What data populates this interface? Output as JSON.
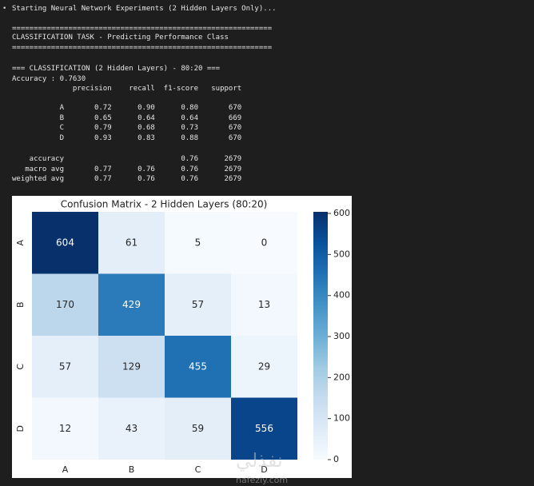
{
  "console": {
    "lines": [
      "Starting Neural Network Experiments (2 Hidden Layers Only)...",
      "============================================================",
      "CLASSIFICATION TASK - Predicting Performance Class",
      "============================================================",
      "=== CLASSIFICATION (2 Hidden Layers) - 80:20 ===",
      "Accuracy : 0.7630",
      "              precision    recall  f1-score   support",
      "           A       0.72      0.90      0.80       670",
      "           B       0.65      0.64      0.64       669",
      "           C       0.79      0.68      0.73       670",
      "           D       0.93      0.83      0.88       670",
      "    accuracy                           0.76      2679",
      "   macro avg       0.77      0.76      0.76      2679",
      "weighted avg       0.77      0.76      0.76      2679"
    ]
  },
  "chart_data": {
    "type": "heatmap",
    "title": "Confusion Matrix - 2 Hidden Layers (80:20)",
    "rows": [
      "A",
      "B",
      "C",
      "D"
    ],
    "columns": [
      "A",
      "B",
      "C",
      "D"
    ],
    "values": [
      [
        604,
        61,
        5,
        0
      ],
      [
        170,
        429,
        57,
        13
      ],
      [
        57,
        129,
        455,
        29
      ],
      [
        12,
        43,
        59,
        556
      ]
    ],
    "colormap": "Blues",
    "clim": [
      0,
      604
    ],
    "cticks": [
      0,
      100,
      200,
      300,
      400,
      500,
      600
    ]
  },
  "watermark": {
    "text": "نفذلي",
    "url": "nafezly.com"
  }
}
